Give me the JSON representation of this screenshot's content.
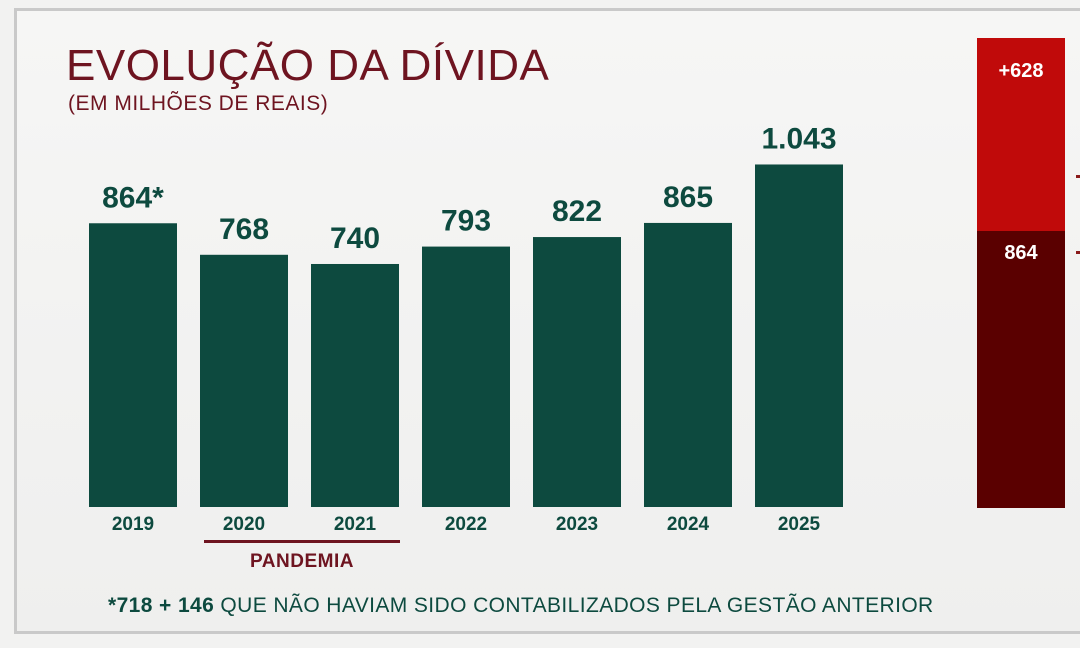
{
  "title": "EVOLUÇÃO DA DÍVIDA",
  "subtitle": "(EM MILHÕES DE REAIS)",
  "colors": {
    "bar": "#0d4a3f",
    "title": "#6e1420",
    "side_top": "#c00a0a",
    "side_bottom": "#5a0000"
  },
  "chart_data": {
    "type": "bar",
    "title": "EVOLUÇÃO DA DÍVIDA",
    "subtitle": "(EM MILHÕES DE REAIS)",
    "xlabel": "",
    "ylabel": "",
    "categories": [
      "2019",
      "2020",
      "2021",
      "2022",
      "2023",
      "2024",
      "2025"
    ],
    "values": [
      864,
      768,
      740,
      793,
      822,
      865,
      1043
    ],
    "value_labels": [
      "864*",
      "768",
      "740",
      "793",
      "822",
      "865",
      "1.043"
    ],
    "grid": false,
    "annotation": {
      "label": "PANDEMIA",
      "spans": [
        "2020",
        "2021"
      ]
    }
  },
  "side_bar": {
    "top_label": "+628",
    "bottom_label": "864"
  },
  "footnote": {
    "bold": "*718 + 146",
    "text": " QUE NÃO HAVIAM SIDO CONTABILIZADOS PELA GESTÃO ANTERIOR"
  }
}
